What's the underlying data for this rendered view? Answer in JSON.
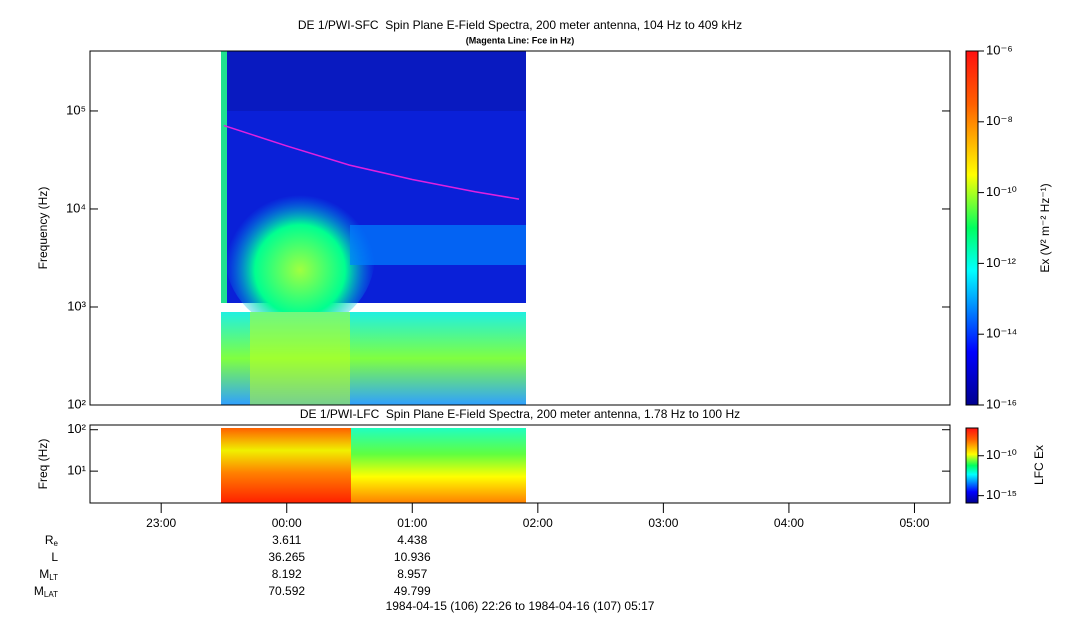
{
  "chart_data": [
    {
      "type": "spectrogram",
      "title": "DE 1/PWI-SFC  Spin Plane E-Field Spectra, 200 meter antenna, 104 Hz to 409 kHz",
      "subtitle": "(Magenta Line: Fce in Hz)",
      "ylabel": "Frequency (Hz)",
      "log_y": true,
      "xlim": [
        -1.567,
        5.283
      ],
      "ylim": [
        100,
        409000
      ],
      "yticks": [
        {
          "value": 100,
          "label": "10²"
        },
        {
          "value": 1000,
          "label": "10³"
        },
        {
          "value": 10000,
          "label": "10⁴"
        },
        {
          "value": 100000,
          "label": "10⁵"
        }
      ],
      "line": {
        "color": "#e020e0",
        "x": [
          -0.5,
          0,
          0.5,
          1.0,
          1.5,
          1.85
        ],
        "values": [
          71000,
          44000,
          28000,
          20000,
          15000,
          12600
        ]
      },
      "colorbar": {
        "label": "Ex (V² m⁻² Hz⁻¹)",
        "lim": [
          1e-16,
          1e-06
        ],
        "ticks": [
          {
            "value": 1e-16,
            "label": "10⁻¹⁶"
          },
          {
            "value": 1e-14,
            "label": "10⁻¹⁴"
          },
          {
            "value": 1e-12,
            "label": "10⁻¹²"
          },
          {
            "value": 1e-10,
            "label": "10⁻¹⁰"
          },
          {
            "value": 1e-08,
            "label": "10⁻⁸"
          },
          {
            "value": 1e-06,
            "label": "10⁻⁶"
          }
        ]
      }
    },
    {
      "type": "spectrogram",
      "title": "DE 1/PWI-LFC  Spin Plane E-Field Spectra, 200 meter antenna, 1.78 Hz to 100 Hz",
      "ylabel": "Freq (Hz)",
      "log_y": true,
      "xlim": [
        -1.567,
        5.283
      ],
      "ylim": [
        1.7,
        130
      ],
      "yticks": [
        {
          "value": 10,
          "label": "10¹"
        },
        {
          "value": 100,
          "label": "10²"
        }
      ],
      "xticks": [
        {
          "value": -1,
          "label": "23:00"
        },
        {
          "value": 0,
          "label": "00:00"
        },
        {
          "value": 1,
          "label": "01:00"
        },
        {
          "value": 2,
          "label": "02:00"
        },
        {
          "value": 3,
          "label": "03:00"
        },
        {
          "value": 4,
          "label": "04:00"
        },
        {
          "value": 5,
          "label": "05:00"
        }
      ],
      "colorbar": {
        "label": "LFC Ex",
        "lim": [
          1.2e-16,
          3e-07
        ],
        "ticks": [
          {
            "value": 1e-15,
            "label": "10⁻¹⁵"
          },
          {
            "value": 1e-10,
            "label": "10⁻¹⁰"
          }
        ]
      }
    }
  ],
  "ephemeris": {
    "x": [
      0,
      1
    ],
    "rows": [
      {
        "label": {
          "main": "R",
          "sub": "e"
        },
        "values": [
          3.611,
          4.438
        ]
      },
      {
        "label": {
          "main": "L",
          "sub": ""
        },
        "values": [
          36.265,
          10.936
        ]
      },
      {
        "label": {
          "main": "M",
          "sub": "LT"
        },
        "values": [
          8.192,
          8.957
        ]
      },
      {
        "label": {
          "main": "M",
          "sub": "LAT"
        },
        "values": [
          70.592,
          49.799
        ]
      }
    ]
  },
  "footer": "1984-04-15 (106) 22:26 to 1984-04-16 (107) 05:17"
}
